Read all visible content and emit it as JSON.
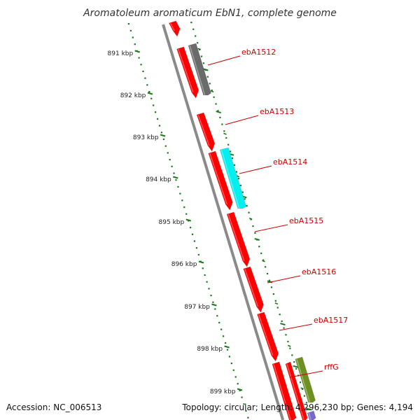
{
  "title": "Aromatoleum aromaticum EbN1, complete genome",
  "footer": {
    "accession": "Accession: NC_006513",
    "stats": "Topology: circular; Length: 4,296,230 bp; Genes: 4,194"
  },
  "colors": {
    "backbone": "#8a8a8a",
    "tick": "#1a7a1a",
    "label": "#cc0000",
    "gene_red": "#ff0000",
    "gene_gray": "#6b6b6b",
    "gene_cyan": "#00f0f0",
    "gene_olive": "#6e8f22",
    "gene_purple": "#7a66cc"
  },
  "ruler": {
    "ticks": [
      "891 kbp",
      "892 kbp",
      "893 kbp",
      "894 kbp",
      "895 kbp",
      "896 kbp",
      "897 kbp",
      "898 kbp",
      "899 kbp"
    ]
  },
  "genes": [
    {
      "label": "ebA1512"
    },
    {
      "label": "ebA1513"
    },
    {
      "label": "ebA1514"
    },
    {
      "label": "ebA1515"
    },
    {
      "label": "ebA1516"
    },
    {
      "label": "ebA1517"
    },
    {
      "label": "rffG"
    }
  ]
}
